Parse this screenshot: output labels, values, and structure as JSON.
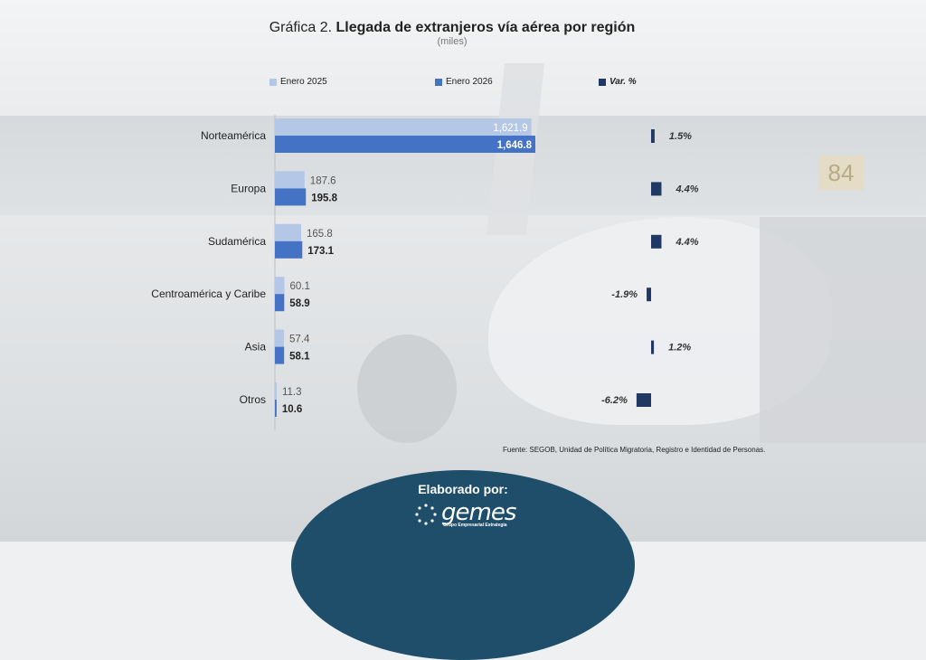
{
  "title": {
    "lead": "Gráfica 2.",
    "main": "Llegada de extranjeros vía aérea por región",
    "subtitle": "(miles)"
  },
  "legend": {
    "enero_2025": "Enero 2025",
    "enero_2026": "Enero 2026",
    "var": "Var. %"
  },
  "colors": {
    "enero_2025": "#b4c7e7",
    "enero_2026": "#4472c4",
    "var": "#1f3864"
  },
  "chart_data": {
    "type": "bar",
    "orientation": "horizontal",
    "categories": [
      "Norteamérica",
      "Europa",
      "Sudamérica",
      "Centroamérica y Caribe",
      "Asia",
      "Otros"
    ],
    "series": [
      {
        "name": "Enero 2025",
        "values": [
          1621.9,
          187.6,
          165.8,
          60.1,
          57.4,
          11.3
        ],
        "labels": [
          "1,621.9",
          "187.6",
          "165.8",
          "60.1",
          "57.4",
          "11.3"
        ]
      },
      {
        "name": "Enero 2026",
        "values": [
          1646.8,
          195.8,
          173.1,
          58.9,
          58.1,
          10.6
        ],
        "labels": [
          "1,646.8",
          "195.8",
          "173.1",
          "58.9",
          "58.1",
          "10.6"
        ]
      },
      {
        "name": "Var. %",
        "values": [
          1.5,
          4.4,
          4.4,
          -1.9,
          1.2,
          -6.2
        ],
        "labels": [
          "1.5%",
          "4.4%",
          "4.4%",
          "-1.9%",
          "1.2%",
          "-6.2%"
        ]
      }
    ],
    "grid": false,
    "legend_position": "top"
  },
  "source": "Fuente: SEGOB, Unidad de Política Migratoria, Registro e Identidad de Personas.",
  "footer": {
    "label": "Elaborado por:",
    "logo_text": "gemes",
    "logo_subtext": "Grupo Empresarial Estrategia"
  }
}
